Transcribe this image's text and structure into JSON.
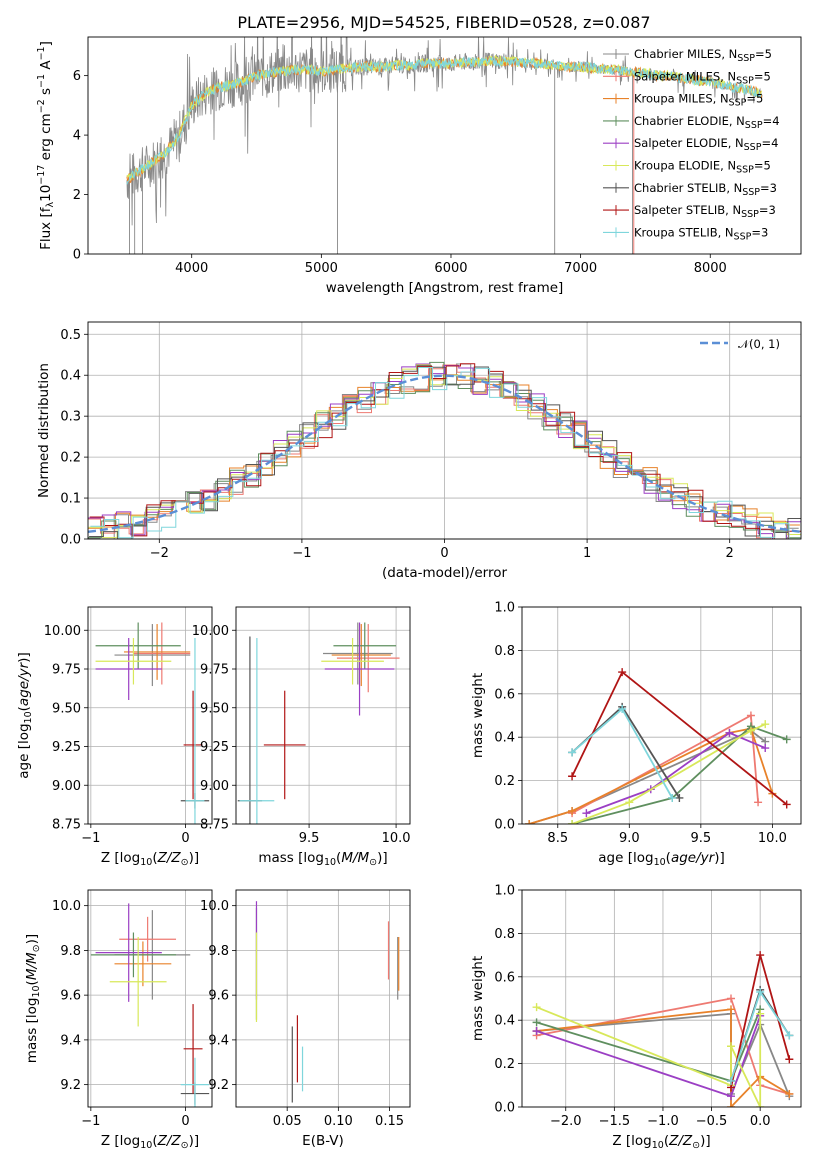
{
  "title": "PLATE=2956, MJD=54525, FIBERID=0528, z=0.087",
  "series": [
    {
      "name": "Chabrier MILES",
      "nssp": "5",
      "color": "#888888"
    },
    {
      "name": "Salpeter MILES",
      "nssp": "5",
      "color": "#ee7a72"
    },
    {
      "name": "Kroupa MILES",
      "nssp": "5",
      "color": "#e8822a"
    },
    {
      "name": "Chabrier ELODIE",
      "nssp": "4",
      "color": "#5f8f5f"
    },
    {
      "name": "Salpeter ELODIE",
      "nssp": "4",
      "color": "#9b3fc4"
    },
    {
      "name": "Kroupa ELODIE",
      "nssp": "5",
      "color": "#d8e85a"
    },
    {
      "name": "Chabrier STELIB",
      "nssp": "3",
      "color": "#555555"
    },
    {
      "name": "Salpeter STELIB",
      "nssp": "3",
      "color": "#b01515"
    },
    {
      "name": "Kroupa STELIB",
      "nssp": "3",
      "color": "#7fd6dc"
    }
  ],
  "chart_data": [
    {
      "type": "line",
      "id": "spectrum",
      "xlabel": "wavelength [Angstrom, rest frame]",
      "ylabel": "Flux [f_λ10^-17 erg cm^-2 s^-1 A^-1]",
      "xlim": [
        3200,
        8700
      ],
      "ylim": [
        0,
        7.3
      ],
      "xticks": [
        4000,
        5000,
        6000,
        7000,
        8000
      ],
      "yticks": [
        0,
        2,
        4,
        6
      ],
      "grid": false,
      "legend": "right",
      "x": [
        3500,
        3600,
        3700,
        3800,
        3900,
        4000,
        4100,
        4200,
        4300,
        4400,
        4500,
        4600,
        4700,
        4800,
        4900,
        5000,
        5100,
        5200,
        5300,
        5400,
        5500,
        5600,
        5700,
        5800,
        5900,
        6000,
        6100,
        6200,
        6300,
        6400,
        6500,
        6600,
        6700,
        6800,
        6900,
        7000,
        7100,
        7200,
        7300,
        7400,
        7500,
        7600,
        7700,
        7800,
        7900,
        8000,
        8100,
        8200,
        8300,
        8400
      ],
      "model_flux": [
        2.5,
        2.8,
        3.1,
        3.4,
        4.0,
        5.0,
        5.4,
        5.6,
        5.7,
        5.8,
        6.0,
        6.1,
        6.15,
        6.2,
        6.2,
        6.15,
        6.2,
        6.25,
        6.3,
        6.3,
        6.3,
        6.35,
        6.35,
        6.4,
        6.4,
        6.4,
        6.45,
        6.45,
        6.5,
        6.5,
        6.45,
        6.4,
        6.4,
        6.35,
        6.3,
        6.3,
        6.25,
        6.2,
        6.2,
        6.1,
        6.1,
        6.0,
        6.0,
        5.9,
        5.85,
        5.8,
        5.7,
        5.6,
        5.5,
        5.4
      ]
    },
    {
      "type": "bar",
      "id": "residuals",
      "xlabel": "(data-model)/error",
      "ylabel": "Normed distribution",
      "xlim": [
        -2.5,
        2.5
      ],
      "ylim": [
        0,
        0.53
      ],
      "xticks": [
        -2,
        -1,
        0,
        1,
        2
      ],
      "yticks": [
        0,
        0.1,
        0.2,
        0.3,
        0.4,
        0.5
      ],
      "grid": true,
      "legend": "top-right",
      "reference_label": "𝒩(0, 1)",
      "bin_width": 0.1
    },
    {
      "type": "scatter",
      "id": "age_vs_Z",
      "xlabel": "Z [log10(Z/Z⊙)]",
      "ylabel": "age  [log10(age/yr)]",
      "xlim": [
        -1.03,
        0.28
      ],
      "ylim": [
        8.75,
        10.15
      ],
      "xticks": [
        -1,
        0
      ],
      "yticks": [
        8.75,
        9.0,
        9.25,
        9.5,
        9.75,
        10.0
      ],
      "grid": true,
      "points": [
        {
          "series": 0,
          "x": -0.35,
          "y": 9.84,
          "xerr": 0.4,
          "yerr": 0.2
        },
        {
          "series": 1,
          "x": -0.25,
          "y": 9.85,
          "xerr": 0.3,
          "yerr": 0.2
        },
        {
          "series": 2,
          "x": -0.3,
          "y": 9.86,
          "xerr": 0.35,
          "yerr": 0.18
        },
        {
          "series": 3,
          "x": -0.5,
          "y": 9.9,
          "xerr": 0.45,
          "yerr": 0.15
        },
        {
          "series": 4,
          "x": -0.6,
          "y": 9.75,
          "xerr": 0.35,
          "yerr": 0.2
        },
        {
          "series": 5,
          "x": -0.55,
          "y": 9.8,
          "xerr": 0.4,
          "yerr": 0.15
        },
        {
          "series": 6,
          "x": 0.1,
          "y": 8.9,
          "xerr": 0.15,
          "yerr": 0.05
        },
        {
          "series": 7,
          "x": 0.08,
          "y": 9.26,
          "xerr": 0.1,
          "yerr": 0.35
        },
        {
          "series": 8,
          "x": 0.1,
          "y": 8.9,
          "xerr": 0.1,
          "yerr": 1.05
        }
      ]
    },
    {
      "type": "scatter",
      "id": "age_vs_mass",
      "xlabel": "mass [log10(M/M⊙)]",
      "ylabel": "",
      "xlim": [
        9.08,
        10.08
      ],
      "ylim": [
        8.75,
        10.15
      ],
      "xticks": [
        9.5,
        10.0
      ],
      "yticks": [
        8.75,
        9.0,
        9.25,
        9.5,
        9.75,
        10.0
      ],
      "grid": true,
      "points": [
        {
          "series": 0,
          "x": 9.78,
          "y": 9.85,
          "xerr": 0.2,
          "yerr": 0.2
        },
        {
          "series": 1,
          "x": 9.84,
          "y": 9.82,
          "xerr": 0.18,
          "yerr": 0.22
        },
        {
          "series": 2,
          "x": 9.8,
          "y": 9.84,
          "xerr": 0.17,
          "yerr": 0.2
        },
        {
          "series": 3,
          "x": 9.82,
          "y": 9.9,
          "xerr": 0.18,
          "yerr": 0.15
        },
        {
          "series": 4,
          "x": 9.79,
          "y": 9.75,
          "xerr": 0.2,
          "yerr": 0.3
        },
        {
          "series": 5,
          "x": 9.75,
          "y": 9.8,
          "xerr": 0.18,
          "yerr": 0.15
        },
        {
          "series": 6,
          "x": 9.16,
          "y": 8.9,
          "xerr": 0.07,
          "yerr": 1.06
        },
        {
          "series": 7,
          "x": 9.36,
          "y": 9.26,
          "xerr": 0.12,
          "yerr": 0.35
        },
        {
          "series": 8,
          "x": 9.2,
          "y": 8.9,
          "xerr": 0.1,
          "yerr": 1.05
        }
      ]
    },
    {
      "type": "line",
      "id": "weight_vs_age",
      "xlabel": "age  [log10(age/yr)]",
      "ylabel": "mass weight",
      "xlim": [
        8.25,
        10.2
      ],
      "ylim": [
        0,
        1.0
      ],
      "xticks": [
        8.5,
        9.0,
        9.5,
        10.0
      ],
      "yticks": [
        0,
        0.2,
        0.4,
        0.6,
        0.8,
        1.0
      ],
      "grid": true,
      "lines": [
        {
          "series": 0,
          "x": [
            8.3,
            8.6,
            9.85,
            9.95
          ],
          "y": [
            0.0,
            0.06,
            0.43,
            0.38
          ]
        },
        {
          "series": 1,
          "x": [
            8.6,
            9.85,
            9.9
          ],
          "y": [
            0.05,
            0.5,
            0.1
          ]
        },
        {
          "series": 2,
          "x": [
            8.3,
            8.6,
            9.7,
            9.85,
            10.0
          ],
          "y": [
            0.0,
            0.06,
            0.42,
            0.44,
            0.14
          ]
        },
        {
          "series": 3,
          "x": [
            8.6,
            9.3,
            9.85,
            10.1
          ],
          "y": [
            0.0,
            0.12,
            0.45,
            0.39
          ]
        },
        {
          "series": 4,
          "x": [
            8.7,
            9.15,
            9.7,
            9.95
          ],
          "y": [
            0.05,
            0.16,
            0.42,
            0.35
          ]
        },
        {
          "series": 5,
          "x": [
            8.6,
            9.0,
            9.85,
            9.95
          ],
          "y": [
            0.0,
            0.1,
            0.43,
            0.46
          ]
        },
        {
          "series": 6,
          "x": [
            8.6,
            8.95,
            9.35
          ],
          "y": [
            0.33,
            0.54,
            0.12
          ]
        },
        {
          "series": 7,
          "x": [
            8.6,
            8.95,
            10.1
          ],
          "y": [
            0.22,
            0.7,
            0.09
          ]
        },
        {
          "series": 8,
          "x": [
            8.6,
            8.95,
            9.3
          ],
          "y": [
            0.33,
            0.53,
            0.12
          ]
        }
      ]
    },
    {
      "type": "scatter",
      "id": "mass_vs_Z",
      "xlabel": "Z [log10(Z/Z⊙)]",
      "ylabel": "mass [log10(M/M⊙)]",
      "xlim": [
        -1.03,
        0.28
      ],
      "ylim": [
        9.1,
        10.07
      ],
      "xticks": [
        -1,
        0
      ],
      "yticks": [
        9.2,
        9.4,
        9.6,
        9.8,
        10.0
      ],
      "grid": true,
      "points": [
        {
          "series": 0,
          "x": -0.35,
          "y": 9.78,
          "xerr": 0.4,
          "yerr": 0.2
        },
        {
          "series": 1,
          "x": -0.4,
          "y": 9.85,
          "xerr": 0.3,
          "yerr": 0.1
        },
        {
          "series": 2,
          "x": -0.45,
          "y": 9.74,
          "xerr": 0.3,
          "yerr": 0.1
        },
        {
          "series": 3,
          "x": -0.55,
          "y": 9.78,
          "xerr": 0.45,
          "yerr": 0.1
        },
        {
          "series": 4,
          "x": -0.6,
          "y": 9.79,
          "xerr": 0.35,
          "yerr": 0.22
        },
        {
          "series": 5,
          "x": -0.5,
          "y": 9.66,
          "xerr": 0.3,
          "yerr": 0.2
        },
        {
          "series": 6,
          "x": 0.1,
          "y": 9.16,
          "xerr": 0.15,
          "yerr": 0.05
        },
        {
          "series": 7,
          "x": 0.08,
          "y": 9.36,
          "xerr": 0.1,
          "yerr": 0.2
        },
        {
          "series": 8,
          "x": 0.1,
          "y": 9.2,
          "xerr": 0.15,
          "yerr": 0.12
        }
      ]
    },
    {
      "type": "scatter",
      "id": "mass_vs_ebv",
      "xlabel": "E(B-V)",
      "ylabel": "",
      "xlim": [
        0.0,
        0.17
      ],
      "ylim": [
        9.1,
        10.07
      ],
      "xticks": [
        0.05,
        0.1,
        0.15
      ],
      "yticks": [
        9.2,
        9.4,
        9.6,
        9.8,
        10.0
      ],
      "grid": true,
      "points": [
        {
          "series": 0,
          "x": 0.158,
          "y": 9.72,
          "xerr": 0.0,
          "yerr": 0.14
        },
        {
          "series": 1,
          "x": 0.149,
          "y": 9.8,
          "xerr": 0.0,
          "yerr": 0.13
        },
        {
          "series": 2,
          "x": 0.159,
          "y": 9.74,
          "xerr": 0.0,
          "yerr": 0.12
        },
        {
          "series": 3,
          "x": 0.02,
          "y": 9.74,
          "xerr": 0.0,
          "yerr": 0.25
        },
        {
          "series": 4,
          "x": 0.02,
          "y": 9.8,
          "xerr": 0.0,
          "yerr": 0.22
        },
        {
          "series": 5,
          "x": 0.02,
          "y": 9.68,
          "xerr": 0.0,
          "yerr": 0.2
        },
        {
          "series": 6,
          "x": 0.055,
          "y": 9.29,
          "xerr": 0.0,
          "yerr": 0.17
        },
        {
          "series": 7,
          "x": 0.06,
          "y": 9.36,
          "xerr": 0.0,
          "yerr": 0.15
        },
        {
          "series": 8,
          "x": 0.065,
          "y": 9.27,
          "xerr": 0.0,
          "yerr": 0.1
        }
      ]
    },
    {
      "type": "line",
      "id": "weight_vs_Z",
      "xlabel": "Z [log10(Z/Z⊙)]",
      "ylabel": "mass weight",
      "xlim": [
        -2.45,
        0.42
      ],
      "ylim": [
        0,
        1.0
      ],
      "xticks": [
        -2.0,
        -1.5,
        -1.0,
        -0.5,
        0.0
      ],
      "yticks": [
        0,
        0.2,
        0.4,
        0.6,
        0.8,
        1.0
      ],
      "grid": true,
      "lines": [
        {
          "series": 0,
          "x": [
            -2.3,
            -0.3,
            -0.3,
            0.0,
            0.3
          ],
          "y": [
            0.35,
            0.43,
            0.06,
            0.38,
            0.05
          ]
        },
        {
          "series": 1,
          "x": [
            -2.3,
            -0.3,
            0.0,
            0.3
          ],
          "y": [
            0.33,
            0.5,
            0.1,
            0.06
          ]
        },
        {
          "series": 2,
          "x": [
            -2.3,
            -0.3,
            -0.3,
            0.0,
            0.3
          ],
          "y": [
            0.35,
            0.45,
            0.0,
            0.14,
            0.06
          ]
        },
        {
          "series": 3,
          "x": [
            -2.3,
            -0.3,
            0.0
          ],
          "y": [
            0.39,
            0.12,
            0.45
          ]
        },
        {
          "series": 4,
          "x": [
            -2.3,
            -0.3,
            0.0
          ],
          "y": [
            0.35,
            0.05,
            0.42
          ]
        },
        {
          "series": 5,
          "x": [
            -2.3,
            -0.3,
            -0.3,
            0.0,
            0.0
          ],
          "y": [
            0.46,
            0.1,
            0.28,
            0.0,
            0.43
          ]
        },
        {
          "series": 6,
          "x": [
            -0.3,
            0.0,
            0.3
          ],
          "y": [
            0.12,
            0.54,
            0.33
          ]
        },
        {
          "series": 7,
          "x": [
            -0.3,
            0.0,
            0.3
          ],
          "y": [
            0.09,
            0.7,
            0.22
          ]
        },
        {
          "series": 8,
          "x": [
            -0.3,
            0.0,
            0.3
          ],
          "y": [
            0.12,
            0.53,
            0.33
          ]
        }
      ]
    }
  ]
}
